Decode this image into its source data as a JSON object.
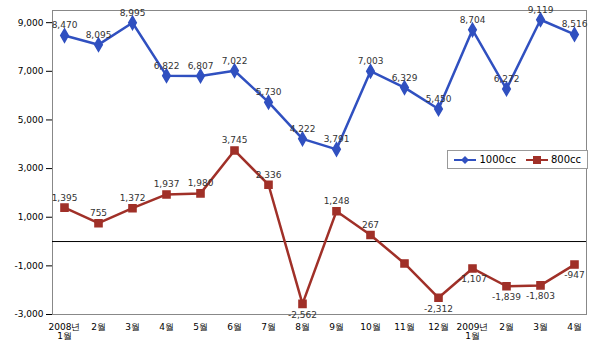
{
  "chart_data": {
    "type": "line",
    "categories": [
      "2008년\n1월",
      "2월",
      "3월",
      "4월",
      "5월",
      "6월",
      "7월",
      "8월",
      "9월",
      "10월",
      "11월",
      "12월",
      "2009년\n1월",
      "2월",
      "3월",
      "4월"
    ],
    "series": [
      {
        "name": "1000cc",
        "color": "#3050c0",
        "marker": "diamond",
        "values": [
          8470,
          8095,
          8995,
          6822,
          6807,
          7022,
          5730,
          4222,
          3791,
          7003,
          6329,
          5450,
          8704,
          6272,
          9119,
          8516
        ],
        "value_labels": [
          "8,470",
          "8,095",
          "8,995",
          "6,822",
          "6,807",
          "7,022",
          "5,730",
          "4,222",
          "3,791",
          "7,003",
          "6,329",
          "5,450",
          "8,704",
          "6,272",
          "9,119",
          "8,516"
        ]
      },
      {
        "name": "800cc",
        "color": "#a03028",
        "marker": "square",
        "values": [
          1395,
          755,
          1372,
          1937,
          1980,
          3745,
          2336,
          -2562,
          1248,
          267,
          -900,
          -2312,
          -1107,
          -1839,
          -1803,
          -947
        ],
        "value_labels": [
          "1,395",
          "755",
          "1,372",
          "1,937",
          "1,980",
          "3,745",
          "2,336",
          "-2,562",
          "1,248",
          "267",
          null,
          "-2,312",
          "-1,107",
          "-1,839",
          "-1,803",
          "-947"
        ]
      }
    ],
    "ylim": [
      -3000,
      9500
    ],
    "yticks": [
      {
        "value": -3000,
        "label": "-3,000"
      },
      {
        "value": -1000,
        "label": "-1,000"
      },
      {
        "value": 1000,
        "label": "1,000"
      },
      {
        "value": 3000,
        "label": "3,000"
      },
      {
        "value": 5000,
        "label": "5,000"
      },
      {
        "value": 7000,
        "label": "7,000"
      },
      {
        "value": 9000,
        "label": "9,000"
      }
    ],
    "grid": false,
    "data_labels": true,
    "legend": "right"
  }
}
